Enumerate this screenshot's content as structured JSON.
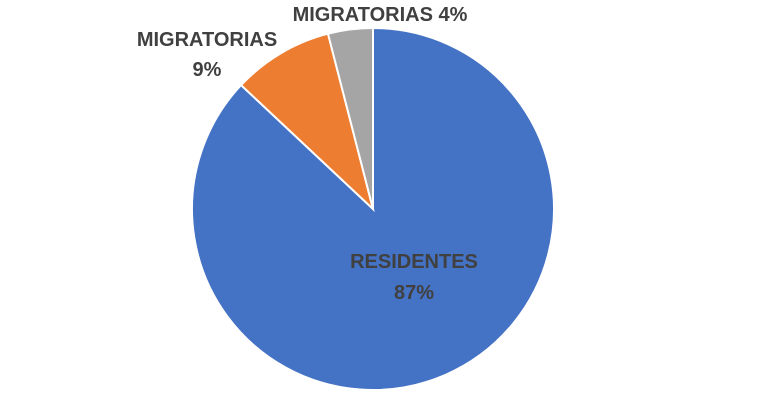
{
  "chart_data": {
    "type": "pie",
    "title": "",
    "legend": "none",
    "slices": [
      {
        "name": "RESIDENTES",
        "value": 87,
        "color": "#4472C4",
        "label_lines": [
          "RESIDENTES",
          "87%"
        ]
      },
      {
        "name": "MIGRATORIAS",
        "value": 9,
        "color": "#ED7D31",
        "label_lines": [
          "MIGRATORIAS",
          "9%"
        ]
      },
      {
        "name": "MIGRATORIAS",
        "value": 4,
        "color": "#A5A5A5",
        "label_lines": [
          "MIGRATORIAS 4%"
        ]
      }
    ]
  }
}
